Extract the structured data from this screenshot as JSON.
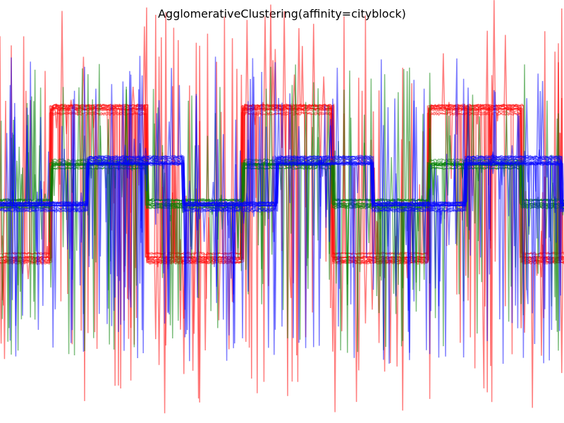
{
  "chart_data": {
    "type": "line",
    "title": "AgglomerativeClustering(affinity=cityblock)",
    "xlabel": "",
    "ylabel": "",
    "axes_visible": false,
    "grid": false,
    "legend": "none",
    "x_range": [
      0,
      2000
    ],
    "y_range": [
      -5.2,
      4.8
    ],
    "samples_per_curve": 2000,
    "series": [
      {
        "color": "#ff0000",
        "curves": 12,
        "low": -1.3,
        "high": 2.2,
        "rise_x": [
          180,
          860,
          1520
        ],
        "fall_x": [
          520,
          1180,
          1850
        ],
        "noise_spikes": 22,
        "noise_span": [
          -5.0,
          4.8
        ]
      },
      {
        "color": "#008000",
        "curves": 12,
        "low": 0.0,
        "high": 0.9,
        "rise_x": [
          180,
          860,
          1520
        ],
        "fall_x": [
          520,
          1180,
          1850
        ],
        "noise_spikes": 22,
        "noise_span": [
          -3.6,
          3.3
        ]
      },
      {
        "color": "#0000ff",
        "curves": 14,
        "low": -0.1,
        "high": 1.0,
        "rise_x": [
          310,
          980,
          1650
        ],
        "fall_x": [
          650,
          1320,
          1990
        ],
        "noise_spikes": 22,
        "noise_span": [
          -3.8,
          3.5
        ]
      }
    ]
  }
}
